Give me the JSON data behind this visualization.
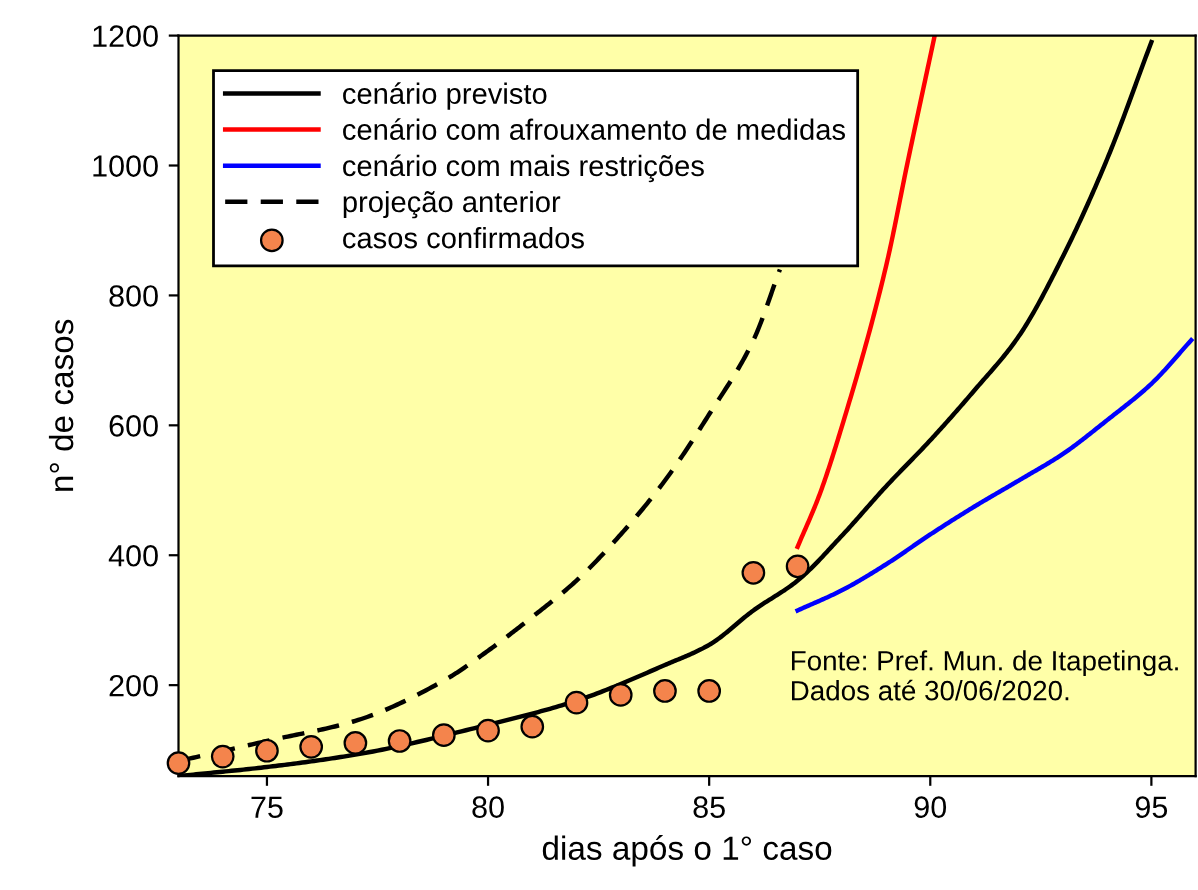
{
  "chart_data": {
    "type": "line",
    "xlabel": "dias após o 1° caso",
    "ylabel": "n° de casos",
    "xlim": [
      73,
      96
    ],
    "ylim": [
      60,
      1200
    ],
    "xticks": [
      75,
      80,
      85,
      90,
      95
    ],
    "yticks": [
      200,
      400,
      600,
      800,
      1000,
      1200
    ],
    "grid": false,
    "legend": "top left",
    "annotations": [
      "Fonte: Pref. Mun. de Itapetinga.\nDados até 30/06/2020."
    ],
    "series": [
      {
        "name": "cenário previsto",
        "color": "#000000",
        "line_style": "solid",
        "x": [
          73,
          75,
          77,
          80,
          82,
          84,
          85,
          86,
          87,
          88,
          89,
          90,
          91,
          92,
          93,
          94,
          95
        ],
        "values": [
          60,
          74,
          93,
          139,
          176,
          231,
          262,
          315,
          361,
          430,
          506,
          577,
          654,
          737,
          860,
          1010,
          1190
        ]
      },
      {
        "name": "cenário com afrouxamento de medidas",
        "color": "#ff0000",
        "line_style": "solid",
        "x": [
          87,
          87.5,
          88,
          89,
          89.5,
          90.1
        ],
        "values": [
          413,
          494,
          598,
          845,
          1009,
          1200
        ]
      },
      {
        "name": "cenário com mais restrições",
        "color": "#0000ff",
        "line_style": "solid",
        "x": [
          87,
          88,
          89,
          90,
          91,
          92,
          93,
          94,
          95,
          95.9
        ],
        "values": [
          315,
          346,
          386,
          432,
          475,
          515,
          556,
          608,
          664,
          731
        ]
      },
      {
        "name": "projeção anterior",
        "color": "#000000",
        "line_style": "dashed",
        "x": [
          73,
          75,
          77,
          79,
          80,
          81,
          82,
          83,
          84,
          85,
          86,
          86.6
        ],
        "values": [
          83,
          114,
          145,
          207,
          253,
          305,
          361,
          432,
          515,
          617,
          731,
          840
        ]
      },
      {
        "name": "casos confirmados",
        "type": "scatter",
        "color": "#f4844c",
        "marker": "circle",
        "x": [
          73,
          74,
          75,
          76,
          77,
          78,
          79,
          80,
          81,
          82,
          83,
          84,
          85,
          86,
          87
        ],
        "values": [
          80,
          90,
          99,
          105,
          111,
          114,
          123,
          130,
          136,
          173,
          185,
          191,
          191,
          373,
          383
        ]
      }
    ]
  }
}
